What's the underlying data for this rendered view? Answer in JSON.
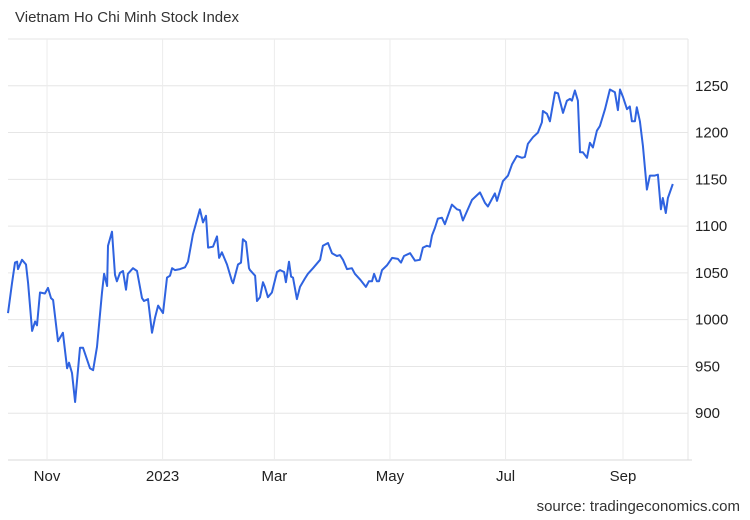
{
  "chart_data": {
    "type": "line",
    "title": "Vietnam Ho Chi Minh Stock Index",
    "source": "source: tradingeconomics.com",
    "xlabel": "",
    "ylabel": "",
    "x_unit": "days since 2022-10-01",
    "xlim": [
      10.4,
      369.3
    ],
    "ylim": [
      850,
      1300
    ],
    "grid": true,
    "line_color": "#2f63e0",
    "x_ticks": [
      {
        "x": 31,
        "label": "Nov"
      },
      {
        "x": 92,
        "label": "2023"
      },
      {
        "x": 151,
        "label": "Mar"
      },
      {
        "x": 212,
        "label": "May"
      },
      {
        "x": 273,
        "label": "Jul"
      },
      {
        "x": 335,
        "label": "Sep"
      }
    ],
    "y_ticks": [
      {
        "y": 900,
        "label": "900"
      },
      {
        "y": 950,
        "label": "950"
      },
      {
        "y": 1000,
        "label": "1000"
      },
      {
        "y": 1050,
        "label": "1050"
      },
      {
        "y": 1100,
        "label": "1100"
      },
      {
        "y": 1150,
        "label": "1150"
      },
      {
        "y": 1200,
        "label": "1200"
      },
      {
        "y": 1250,
        "label": "1250"
      }
    ],
    "series": [
      {
        "name": "Vietnam Ho Chi Minh Stock Index",
        "x": [
          10.4,
          12.5,
          14.1,
          15.2,
          15.7,
          17.8,
          19.9,
          21,
          23.1,
          24.7,
          25.7,
          27.3,
          29.9,
          31.5,
          33.1,
          34.2,
          36.8,
          39.4,
          41.6,
          42.6,
          44.2,
          45.8,
          48.4,
          50,
          53.7,
          55.3,
          57.4,
          60,
          61.1,
          62.7,
          63.2,
          65.3,
          66.9,
          67.9,
          69.5,
          71.1,
          72.7,
          73.7,
          76.4,
          78.5,
          81.1,
          82.2,
          84.3,
          86.4,
          88,
          89.6,
          92.2,
          94.3,
          95.9,
          97,
          98.5,
          101.2,
          103.8,
          105.4,
          108,
          111.7,
          113.3,
          114.9,
          116,
          118.6,
          120.7,
          121.8,
          123.3,
          126,
          128.6,
          129.2,
          131.8,
          133.4,
          134.4,
          136,
          137.6,
          138.1,
          140.8,
          141.8,
          143.4,
          145,
          146,
          147.6,
          149.7,
          152.4,
          154,
          156.1,
          157.1,
          158.7,
          159.8,
          160.8,
          162.9,
          164.5,
          167.1,
          168.7,
          171.4,
          175.1,
          176.6,
          179.3,
          181.4,
          184,
          185.6,
          187.2,
          189.3,
          191.9,
          193.5,
          196.2,
          199.3,
          200.9,
          202.5,
          203.6,
          205.1,
          206.2,
          207.8,
          210.4,
          213.1,
          216.2,
          217.8,
          219.4,
          222.6,
          225.2,
          227.8,
          229.4,
          231.5,
          233.1,
          234.2,
          235.7,
          237.3,
          239.4,
          241,
          244.7,
          247.4,
          248.9,
          250.5,
          255.3,
          259.5,
          262.1,
          263.7,
          267.4,
          268.5,
          271.6,
          274.3,
          276.4,
          279,
          281.7,
          283.2,
          284.8,
          287.5,
          290.1,
          292.2,
          292.7,
          294.9,
          296.4,
          299.1,
          300.7,
          303.3,
          305.4,
          307,
          308,
          309.6,
          311.2,
          312.3,
          313.8,
          316,
          317.5,
          319.1,
          321.2,
          322.8,
          325.5,
          328.1,
          330.7,
          332.3,
          333.4,
          335,
          337.1,
          338.6,
          339.7,
          341.3,
          342.3,
          343.9,
          345.5,
          347.6,
          349.2,
          351.8,
          353.4,
          355,
          356,
          357.6,
          358.7,
          361.3
        ],
        "y": [
          1007,
          1039,
          1061,
          1062,
          1054,
          1064,
          1059,
          1039,
          988,
          998,
          994,
          1029,
          1028,
          1034,
          1023,
          1021,
          977,
          986,
          948,
          954,
          943,
          912,
          970,
          970,
          948,
          946,
          971,
          1029,
          1049,
          1036,
          1079,
          1094,
          1048,
          1041,
          1050,
          1052,
          1032,
          1049,
          1055,
          1052,
          1023,
          1020,
          1022,
          986,
          1002,
          1015,
          1007,
          1045,
          1047,
          1055,
          1053,
          1054,
          1056,
          1062,
          1091,
          1118,
          1104,
          1111,
          1077,
          1078,
          1089,
          1066,
          1072,
          1059,
          1041,
          1039,
          1059,
          1061,
          1086,
          1083,
          1055,
          1053,
          1047,
          1020,
          1024,
          1040,
          1035,
          1024,
          1029,
          1051,
          1053,
          1051,
          1040,
          1062,
          1046,
          1045,
          1022,
          1035,
          1044,
          1049,
          1055,
          1064,
          1079,
          1082,
          1071,
          1068,
          1069,
          1064,
          1054,
          1055,
          1049,
          1043,
          1035,
          1041,
          1041,
          1049,
          1041,
          1041,
          1053,
          1058,
          1066,
          1065,
          1061,
          1068,
          1071,
          1063,
          1064,
          1077,
          1079,
          1078,
          1090,
          1098,
          1108,
          1109,
          1102,
          1123,
          1118,
          1117,
          1106,
          1128,
          1136,
          1125,
          1121,
          1135,
          1127,
          1148,
          1154,
          1166,
          1175,
          1173,
          1174,
          1188,
          1195,
          1200,
          1211,
          1223,
          1220,
          1212,
          1243,
          1242,
          1221,
          1234,
          1236,
          1234,
          1245,
          1234,
          1179,
          1179,
          1173,
          1189,
          1184,
          1202,
          1207,
          1225,
          1246,
          1243,
          1224,
          1246,
          1238,
          1225,
          1228,
          1212,
          1212,
          1227,
          1212,
          1186,
          1139,
          1154,
          1154,
          1155,
          1118,
          1130,
          1114,
          1130,
          1145
        ]
      }
    ]
  }
}
